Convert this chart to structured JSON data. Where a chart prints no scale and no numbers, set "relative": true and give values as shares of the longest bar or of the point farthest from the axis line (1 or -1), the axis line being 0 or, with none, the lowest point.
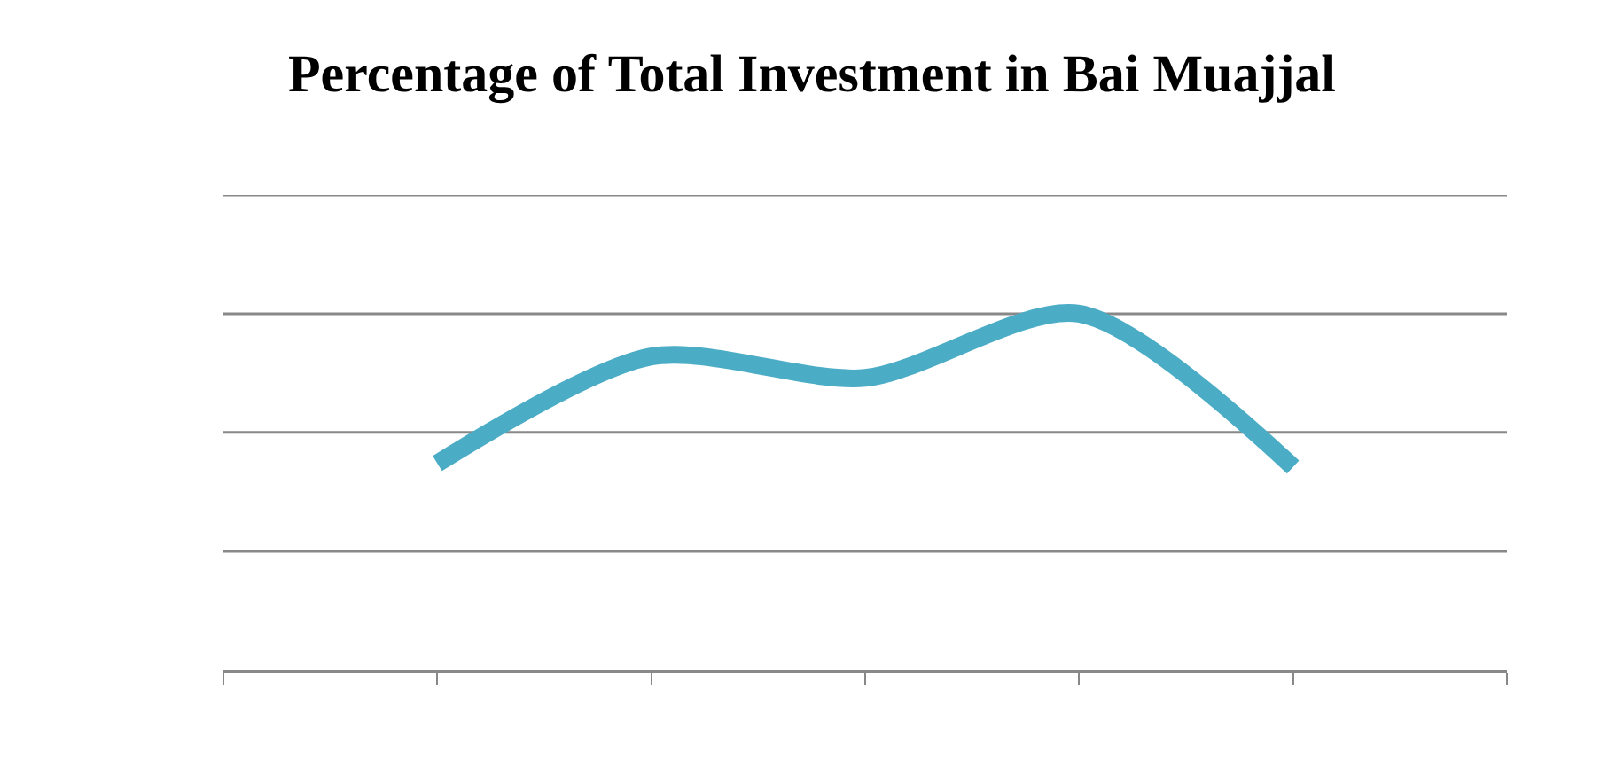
{
  "chart_data": {
    "type": "line",
    "title": "Percentage of Total Investment in Bai Muajjal",
    "relative": true,
    "categories": [
      null,
      null,
      null,
      null,
      null,
      null,
      null
    ],
    "series": [
      {
        "color": "#4bacc6",
        "values": [
          null,
          0.58,
          0.88,
          0.82,
          1,
          0.57,
          null
        ]
      }
    ],
    "ref_lines": [
      {
        "axis": "y",
        "value": 0.333,
        "color": "#888888"
      },
      {
        "axis": "y",
        "value": 0.667,
        "color": "#888888"
      },
      {
        "axis": "y",
        "value": 1,
        "color": "#888888"
      },
      {
        "axis": "y",
        "value": 1.333,
        "color": "#888888"
      }
    ]
  }
}
